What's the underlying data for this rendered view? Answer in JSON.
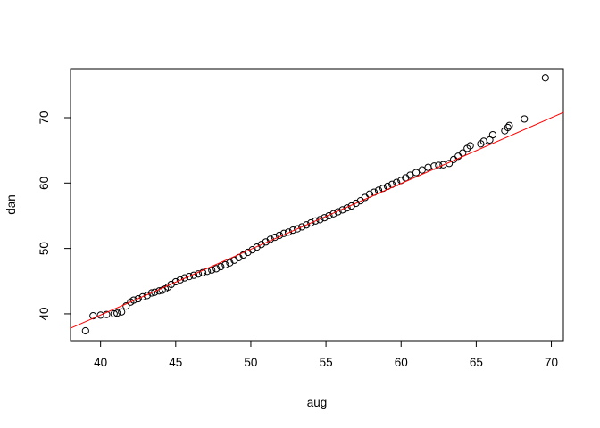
{
  "chart_data": {
    "type": "scatter",
    "title": "",
    "xlabel": "aug",
    "ylabel": "dan",
    "xlim": [
      38.0,
      70.8
    ],
    "ylim": [
      35.9,
      77.5
    ],
    "xticks": [
      40,
      45,
      50,
      55,
      60,
      65,
      70
    ],
    "yticks": [
      40,
      50,
      60,
      70
    ],
    "grid": false,
    "point_color": "#000000",
    "line_color": "#ff0000",
    "reference_line": {
      "name": "",
      "x": [
        38.0,
        70.8
      ],
      "y": [
        37.8,
        70.8
      ]
    },
    "points": {
      "x": [
        39.0,
        39.5,
        40.0,
        40.4,
        40.9,
        41.1,
        41.4,
        41.7,
        42.0,
        42.2,
        42.5,
        42.8,
        43.1,
        43.4,
        43.6,
        43.9,
        44.1,
        44.3,
        44.5,
        44.7,
        45.0,
        45.3,
        45.6,
        45.9,
        46.2,
        46.5,
        46.8,
        47.1,
        47.4,
        47.7,
        48.0,
        48.3,
        48.6,
        48.9,
        49.2,
        49.5,
        49.8,
        50.1,
        50.4,
        50.7,
        51.0,
        51.3,
        51.6,
        51.9,
        52.2,
        52.5,
        52.8,
        53.1,
        53.4,
        53.7,
        54.0,
        54.3,
        54.6,
        54.9,
        55.2,
        55.5,
        55.8,
        56.1,
        56.4,
        56.7,
        57.0,
        57.3,
        57.6,
        57.9,
        58.2,
        58.5,
        58.8,
        59.1,
        59.4,
        59.7,
        60.0,
        60.3,
        60.6,
        61.0,
        61.4,
        61.8,
        62.2,
        62.5,
        62.8,
        63.2,
        63.5,
        63.8,
        64.1,
        64.4,
        64.6,
        65.3,
        65.5,
        65.9,
        66.1,
        66.9,
        67.1,
        67.2,
        68.2,
        69.6
      ],
      "y": [
        37.4,
        39.7,
        39.8,
        39.9,
        40.0,
        40.1,
        40.3,
        41.2,
        41.8,
        42.1,
        42.3,
        42.6,
        42.8,
        43.2,
        43.3,
        43.5,
        43.6,
        43.8,
        44.1,
        44.5,
        44.9,
        45.2,
        45.5,
        45.7,
        45.9,
        46.1,
        46.3,
        46.5,
        46.7,
        46.9,
        47.2,
        47.5,
        47.8,
        48.2,
        48.6,
        49.0,
        49.4,
        49.8,
        50.2,
        50.6,
        51.0,
        51.4,
        51.7,
        52.0,
        52.3,
        52.5,
        52.8,
        53.0,
        53.3,
        53.6,
        53.9,
        54.2,
        54.4,
        54.7,
        55.0,
        55.3,
        55.6,
        55.9,
        56.2,
        56.5,
        56.9,
        57.3,
        57.8,
        58.3,
        58.6,
        58.9,
        59.2,
        59.5,
        59.8,
        60.1,
        60.4,
        60.8,
        61.2,
        61.6,
        62.0,
        62.4,
        62.6,
        62.7,
        62.8,
        63.0,
        63.6,
        64.1,
        64.6,
        65.3,
        65.7,
        66.0,
        66.4,
        66.6,
        67.4,
        68.0,
        68.5,
        68.8,
        69.8,
        76.1
      ]
    }
  }
}
